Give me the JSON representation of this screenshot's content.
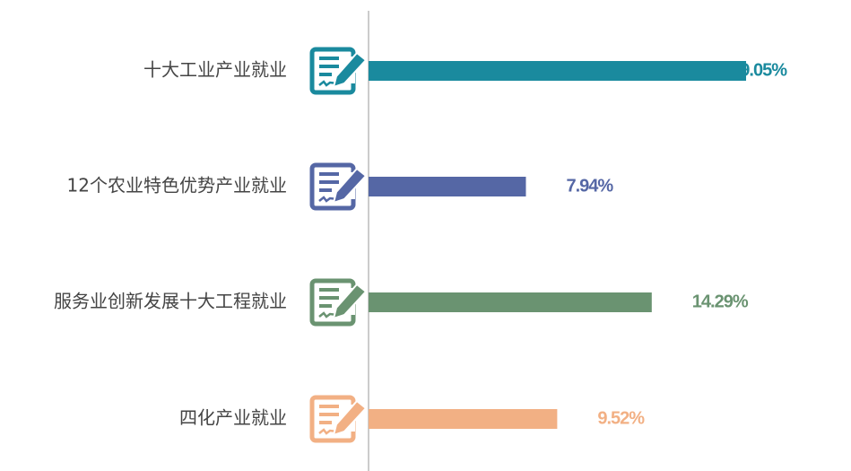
{
  "chart_data": {
    "type": "bar",
    "orientation": "horizontal",
    "categories": [
      "十大工业产业就业",
      "12个农业特色优势产业就业",
      "服务业创新发展十大工程就业",
      "四化产业就业"
    ],
    "values": [
      19.05,
      7.94,
      14.29,
      9.52
    ],
    "value_labels": [
      "19.05%",
      "7.94%",
      "14.29%",
      "9.52%"
    ],
    "colors": [
      "#1a8a9e",
      "#5567a5",
      "#6a9371",
      "#f2b084"
    ]
  }
}
